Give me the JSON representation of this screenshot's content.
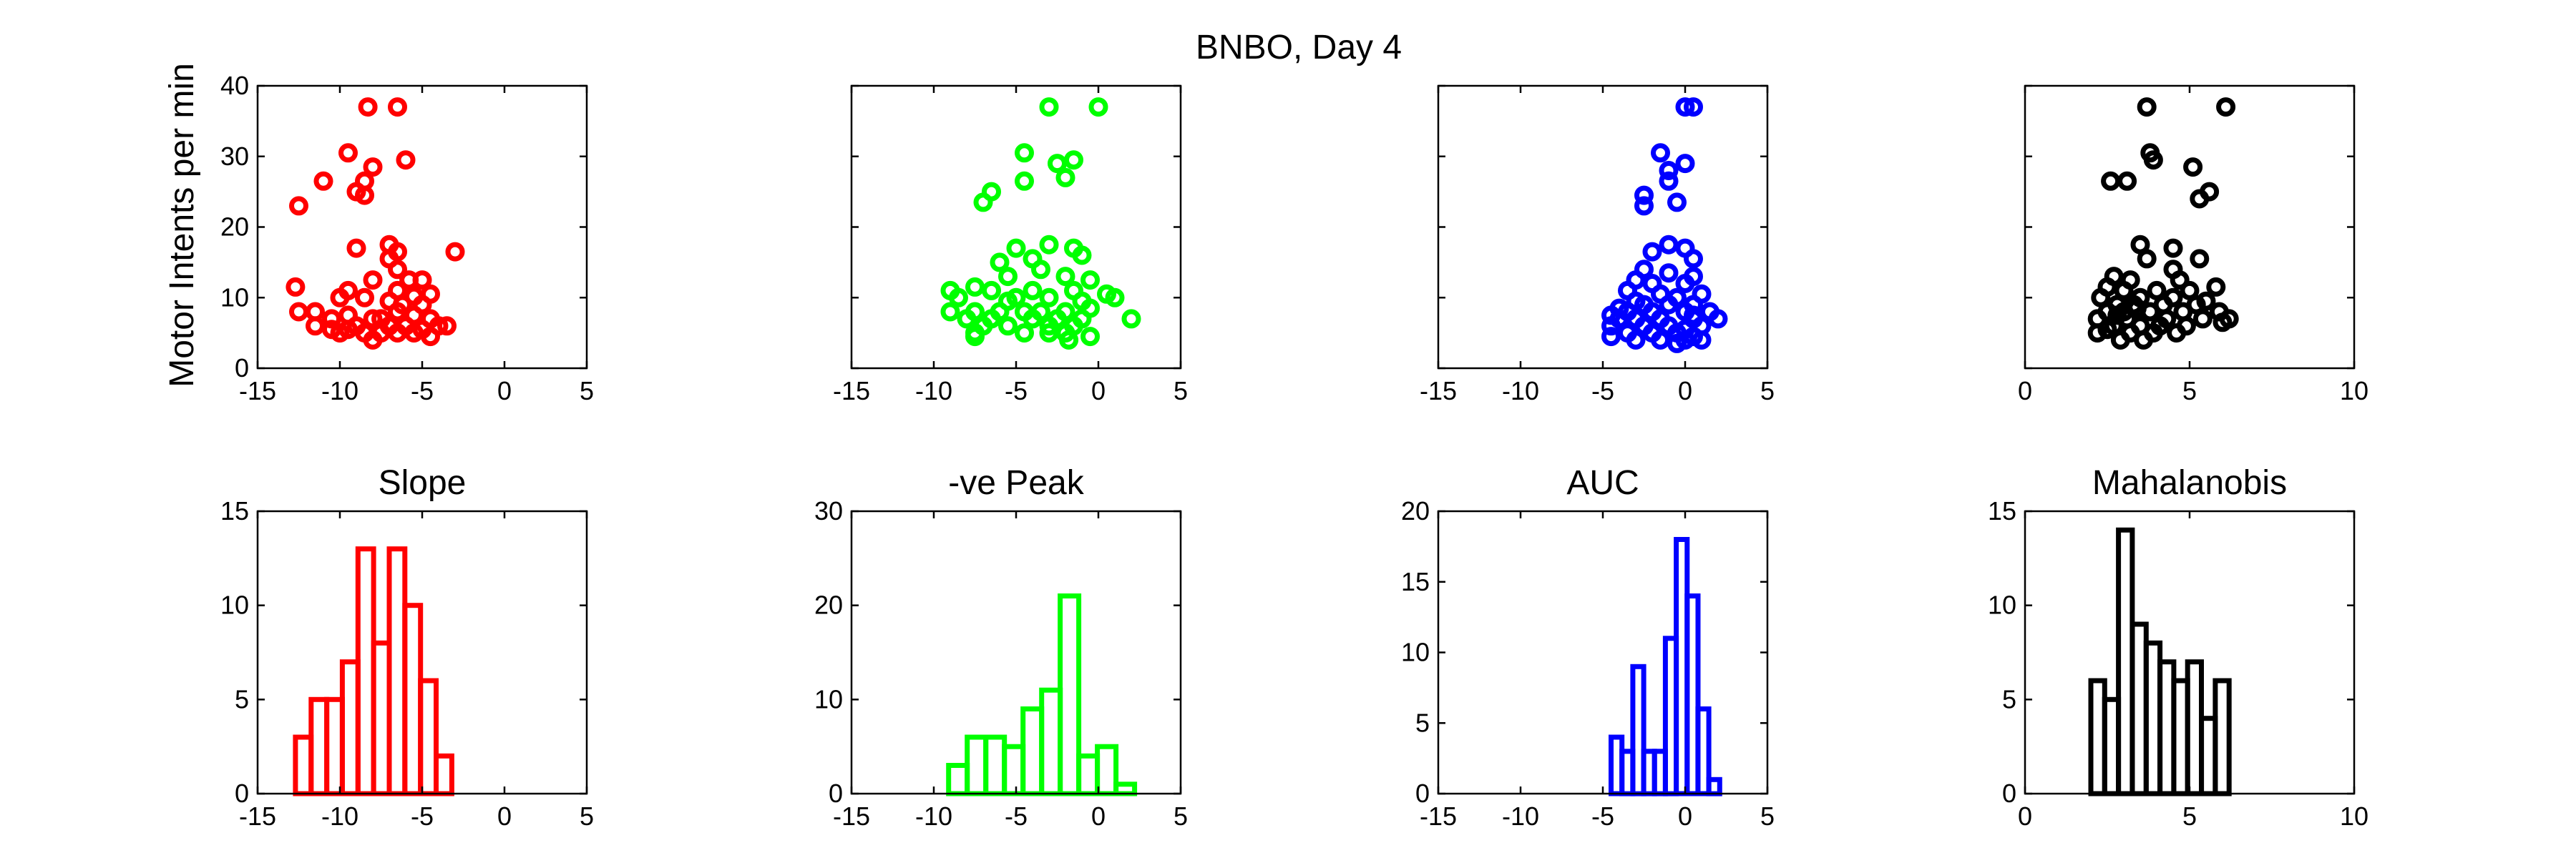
{
  "figure_title": "BNBO, Day 4",
  "shared_ylabel": "Motor Intents per min",
  "colors": {
    "slope": "#ff0000",
    "peak": "#00ff00",
    "auc": "#0000ff",
    "mahal": "#000000"
  },
  "chart_data": [
    {
      "type": "scatter",
      "name": "slope-scatter",
      "color": "#ff0000",
      "title": "",
      "xlim": [
        -15,
        5
      ],
      "ylim": [
        0,
        40
      ],
      "xticks": [
        -15,
        -10,
        -5,
        0,
        5
      ],
      "yticks": [
        0,
        10,
        20,
        30,
        40
      ],
      "show_ytick_labels": true,
      "points": [
        [
          -8.3,
          37
        ],
        [
          -6.5,
          37
        ],
        [
          -9.5,
          30.5
        ],
        [
          -6,
          29.5
        ],
        [
          -8,
          28.5
        ],
        [
          -8.5,
          26.5
        ],
        [
          -11,
          26.5
        ],
        [
          -9,
          25
        ],
        [
          -8.5,
          24.5
        ],
        [
          -12.5,
          23
        ],
        [
          -7,
          17.5
        ],
        [
          -6.5,
          16.5
        ],
        [
          -9,
          17
        ],
        [
          -3,
          16.5
        ],
        [
          -7,
          15.5
        ],
        [
          -6.5,
          14
        ],
        [
          -8,
          12.5
        ],
        [
          -5,
          12.5
        ],
        [
          -5.8,
          12.5
        ],
        [
          -12.7,
          11.5
        ],
        [
          -9.5,
          11
        ],
        [
          -6.5,
          11
        ],
        [
          -10,
          10
        ],
        [
          -5.5,
          10.2
        ],
        [
          -4.5,
          10.5
        ],
        [
          -8.5,
          10
        ],
        [
          -7,
          9.5
        ],
        [
          -5,
          9
        ],
        [
          -6.2,
          9
        ],
        [
          -11.5,
          8
        ],
        [
          -12.5,
          8
        ],
        [
          -9.5,
          7.5
        ],
        [
          -8,
          7
        ],
        [
          -6.5,
          8
        ],
        [
          -5.5,
          7.5
        ],
        [
          -4.5,
          7
        ],
        [
          -7.5,
          7
        ],
        [
          -10.5,
          7
        ],
        [
          -11.5,
          6
        ],
        [
          -9,
          6
        ],
        [
          -7,
          6
        ],
        [
          -6,
          6
        ],
        [
          -5,
          5.5
        ],
        [
          -4,
          6
        ],
        [
          -8.5,
          5
        ],
        [
          -10,
          5
        ],
        [
          -7.5,
          5
        ],
        [
          -6.5,
          5
        ],
        [
          -5.5,
          5
        ],
        [
          -4.5,
          4.5
        ],
        [
          -8,
          4
        ],
        [
          -3.5,
          6
        ],
        [
          -10.5,
          5.5
        ],
        [
          -9.5,
          5.5
        ]
      ]
    },
    {
      "type": "scatter",
      "name": "peak-scatter",
      "color": "#00ff00",
      "title": "",
      "xlim": [
        -15,
        5
      ],
      "ylim": [
        0,
        40
      ],
      "xticks": [
        -15,
        -10,
        -5,
        0,
        5
      ],
      "yticks": [
        0,
        10,
        20,
        30,
        40
      ],
      "show_ytick_labels": false,
      "points": [
        [
          -3,
          37
        ],
        [
          0,
          37
        ],
        [
          -4.5,
          30.5
        ],
        [
          -2.5,
          29
        ],
        [
          -1.5,
          29.5
        ],
        [
          -2,
          27
        ],
        [
          -4.5,
          26.5
        ],
        [
          -6.5,
          25
        ],
        [
          -7,
          23.5
        ],
        [
          -5,
          17
        ],
        [
          -3,
          17.5
        ],
        [
          -1.5,
          17
        ],
        [
          -6,
          15
        ],
        [
          -4,
          15.5
        ],
        [
          -1,
          16
        ],
        [
          -3.5,
          14
        ],
        [
          -5.5,
          13
        ],
        [
          -2,
          13
        ],
        [
          -0.5,
          12.5
        ],
        [
          -7.5,
          11.5
        ],
        [
          -9,
          11
        ],
        [
          -6.5,
          11
        ],
        [
          -4,
          11
        ],
        [
          -1.5,
          11
        ],
        [
          0.5,
          10.5
        ],
        [
          -8.5,
          10
        ],
        [
          -5,
          10
        ],
        [
          -3,
          10
        ],
        [
          -1,
          9.5
        ],
        [
          1,
          10
        ],
        [
          -5.5,
          9.5
        ],
        [
          -9,
          8
        ],
        [
          -7.5,
          8
        ],
        [
          -6,
          8
        ],
        [
          -4.5,
          8
        ],
        [
          -3.5,
          8
        ],
        [
          -2,
          8
        ],
        [
          -0.5,
          8.5
        ],
        [
          2,
          7
        ],
        [
          -8,
          7
        ],
        [
          -6.5,
          7
        ],
        [
          -4,
          7
        ],
        [
          -2.5,
          7
        ],
        [
          -1,
          7
        ],
        [
          -7,
          6
        ],
        [
          -5.5,
          6
        ],
        [
          -3,
          6
        ],
        [
          -1.5,
          6
        ],
        [
          -7.5,
          5
        ],
        [
          -4.5,
          5
        ],
        [
          -3,
          5
        ],
        [
          -2,
          5
        ],
        [
          -0.5,
          4.5
        ],
        [
          -1.8,
          4
        ],
        [
          -7.5,
          4.5
        ]
      ]
    },
    {
      "type": "scatter",
      "name": "auc-scatter",
      "color": "#0000ff",
      "title": "",
      "xlim": [
        -15,
        5
      ],
      "ylim": [
        0,
        40
      ],
      "xticks": [
        -15,
        -10,
        -5,
        0,
        5
      ],
      "yticks": [
        0,
        10,
        20,
        30,
        40
      ],
      "show_ytick_labels": false,
      "points": [
        [
          0,
          37
        ],
        [
          0.5,
          37
        ],
        [
          -1.5,
          30.5
        ],
        [
          0,
          29
        ],
        [
          -1,
          28
        ],
        [
          -1,
          26.5
        ],
        [
          -2.5,
          24.5
        ],
        [
          -2.5,
          23
        ],
        [
          -0.5,
          23.5
        ],
        [
          -1,
          17.5
        ],
        [
          0,
          17
        ],
        [
          -2,
          16.5
        ],
        [
          0.5,
          15.5
        ],
        [
          -2.5,
          14
        ],
        [
          -1,
          13.5
        ],
        [
          0.5,
          13
        ],
        [
          -3,
          12.5
        ],
        [
          -2,
          12
        ],
        [
          0,
          12
        ],
        [
          -3.5,
          11
        ],
        [
          -1.5,
          10.5
        ],
        [
          1,
          10.5
        ],
        [
          -3,
          9.5
        ],
        [
          -0.5,
          10
        ],
        [
          -4,
          8.5
        ],
        [
          -2.5,
          9
        ],
        [
          -1,
          9
        ],
        [
          0.5,
          9
        ],
        [
          -4.5,
          7.5
        ],
        [
          -3.5,
          8
        ],
        [
          -2,
          8
        ],
        [
          0,
          8
        ],
        [
          1.5,
          8
        ],
        [
          -4,
          7
        ],
        [
          -3,
          7
        ],
        [
          -1.5,
          7
        ],
        [
          0.5,
          7
        ],
        [
          2,
          7
        ],
        [
          -4.5,
          6
        ],
        [
          -2.5,
          6
        ],
        [
          -1,
          6
        ],
        [
          0,
          5.5
        ],
        [
          1,
          6
        ],
        [
          -3.5,
          5
        ],
        [
          -2,
          5
        ],
        [
          -0.5,
          5
        ],
        [
          0.5,
          4.5
        ],
        [
          -4.5,
          4.5
        ],
        [
          -3,
          4
        ],
        [
          -1.5,
          4
        ],
        [
          0,
          4
        ],
        [
          1,
          4
        ],
        [
          -0.5,
          3.5
        ],
        [
          0.5,
          7.5
        ]
      ]
    },
    {
      "type": "scatter",
      "name": "mahal-scatter",
      "color": "#000000",
      "title": "",
      "xlim": [
        0,
        10
      ],
      "ylim": [
        0,
        40
      ],
      "xticks": [
        0,
        5,
        10
      ],
      "yticks": [
        0,
        10,
        20,
        30,
        40
      ],
      "show_ytick_labels": false,
      "points": [
        [
          3.7,
          37
        ],
        [
          6.1,
          37
        ],
        [
          3.8,
          30.5
        ],
        [
          3.9,
          29.5
        ],
        [
          5.1,
          28.5
        ],
        [
          3.1,
          26.5
        ],
        [
          2.6,
          26.5
        ],
        [
          5.6,
          25
        ],
        [
          5.3,
          24
        ],
        [
          3.5,
          17.5
        ],
        [
          4.5,
          17
        ],
        [
          3.7,
          15.5
        ],
        [
          5.3,
          15.5
        ],
        [
          4.5,
          14
        ],
        [
          2.7,
          13
        ],
        [
          3.2,
          12.5
        ],
        [
          4.7,
          12.5
        ],
        [
          2.5,
          11.5
        ],
        [
          3,
          11
        ],
        [
          4,
          11
        ],
        [
          5,
          11
        ],
        [
          5.8,
          11.5
        ],
        [
          2.3,
          10
        ],
        [
          3.5,
          10
        ],
        [
          4.5,
          10
        ],
        [
          5.5,
          9.5
        ],
        [
          2.8,
          9
        ],
        [
          3.3,
          9
        ],
        [
          4.2,
          9
        ],
        [
          5.2,
          9
        ],
        [
          2.5,
          8
        ],
        [
          3,
          8
        ],
        [
          3.8,
          8
        ],
        [
          4.8,
          8
        ],
        [
          5.9,
          8
        ],
        [
          2.2,
          7
        ],
        [
          3.1,
          7
        ],
        [
          4.3,
          7
        ],
        [
          5.4,
          7
        ],
        [
          6.2,
          7
        ],
        [
          2.7,
          6
        ],
        [
          3.5,
          6
        ],
        [
          4.1,
          6
        ],
        [
          4.9,
          6
        ],
        [
          2.2,
          5
        ],
        [
          3.2,
          5
        ],
        [
          3.9,
          5
        ],
        [
          4.6,
          5
        ],
        [
          2.9,
          4
        ],
        [
          3.6,
          4
        ],
        [
          2.5,
          5.5
        ],
        [
          6,
          6.5
        ],
        [
          3.4,
          8.5
        ],
        [
          2.8,
          7.5
        ]
      ]
    },
    {
      "type": "histogram",
      "name": "slope-hist",
      "color": "#ff0000",
      "title": "Slope",
      "xlim": [
        -15,
        5
      ],
      "ylim": [
        0,
        15
      ],
      "xticks": [
        -15,
        -10,
        -5,
        0,
        5
      ],
      "yticks": [
        0,
        5,
        10,
        15
      ],
      "show_ytick_labels": true,
      "bin_start": -12.7,
      "bin_width": 0.95,
      "counts": [
        3,
        5,
        5,
        7,
        13,
        8,
        13,
        10,
        6,
        2
      ]
    },
    {
      "type": "histogram",
      "name": "peak-hist",
      "color": "#00ff00",
      "title": "-ve Peak",
      "xlim": [
        -15,
        5
      ],
      "ylim": [
        0,
        30
      ],
      "xticks": [
        -15,
        -10,
        -5,
        0,
        5
      ],
      "yticks": [
        0,
        10,
        20,
        30
      ],
      "show_ytick_labels": true,
      "bin_start": -9.1,
      "bin_width": 1.13,
      "counts": [
        3,
        6,
        6,
        5,
        9,
        11,
        21,
        4,
        5,
        1
      ]
    },
    {
      "type": "histogram",
      "name": "auc-hist",
      "color": "#0000ff",
      "title": "AUC",
      "xlim": [
        -15,
        5
      ],
      "ylim": [
        0,
        20
      ],
      "xticks": [
        -15,
        -10,
        -5,
        0,
        5
      ],
      "yticks": [
        0,
        5,
        10,
        15,
        20
      ],
      "show_ytick_labels": true,
      "bin_start": -4.5,
      "bin_width": 0.66,
      "counts": [
        4,
        3,
        9,
        3,
        3,
        11,
        18,
        14,
        6,
        1
      ]
    },
    {
      "type": "histogram",
      "name": "mahal-hist",
      "color": "#000000",
      "title": "Mahalanobis",
      "xlim": [
        0,
        10
      ],
      "ylim": [
        0,
        15
      ],
      "xticks": [
        0,
        5,
        10
      ],
      "yticks": [
        0,
        5,
        10,
        15
      ],
      "show_ytick_labels": true,
      "bin_start": 2.0,
      "bin_width": 0.42,
      "counts": [
        6,
        5,
        14,
        9,
        8,
        7,
        6,
        7,
        4,
        6
      ]
    }
  ]
}
